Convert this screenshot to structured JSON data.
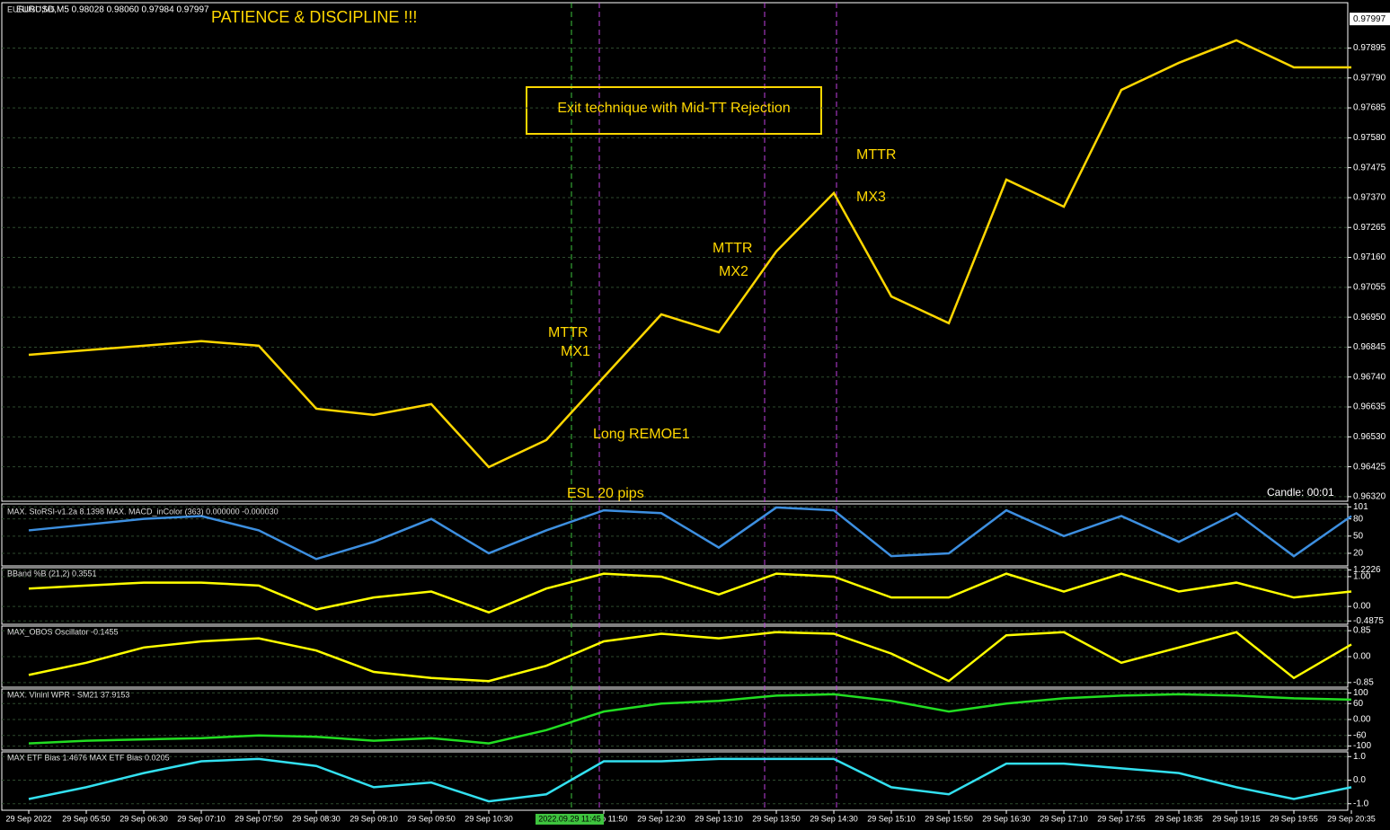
{
  "header": "EURUSD,M5  0.98028 0.98060 0.97984 0.97997",
  "title": "PATIENCE & DISCIPLINE !!!",
  "annotations": [
    "Exit technique with Mid-TT Rejection",
    "MTTR",
    "MX3",
    "MTTR",
    "MX2",
    "MTTR",
    "MX1",
    "Long REMOE1",
    "ESL 20 pips",
    "Candle:  00:01"
  ],
  "cursor_label": "2022.09.29 11:45",
  "chart_data": [
    {
      "type": "line",
      "title": "EURUSD,M5",
      "color": "#ffd700",
      "categories": [
        "29 Sep 2022",
        "29 Sep 05:50",
        "29 Sep 06:30",
        "29 Sep 07:10",
        "29 Sep 07:50",
        "29 Sep 08:30",
        "29 Sep 09:10",
        "29 Sep 09:50",
        "29 Sep 10:30",
        null,
        "29 Sep 11:50",
        "29 Sep 12:30",
        "29 Sep 13:10",
        "29 Sep 13:50",
        "29 Sep 14:30",
        "29 Sep 15:10",
        "29 Sep 15:50",
        "29 Sep 16:30",
        "29 Sep 17:10",
        "29 Sep 17:55",
        "29 Sep 18:35",
        "29 Sep 19:15",
        "29 Sep 19:55",
        "29 Sep 20:35"
      ],
      "values": [
        0.96818,
        0.96834,
        0.9685,
        0.96866,
        0.9685,
        0.96629,
        0.96607,
        0.96645,
        0.96424,
        0.96519,
        0.9674,
        0.9696,
        0.96897,
        0.97181,
        0.97386,
        0.97023,
        0.96929,
        0.97433,
        0.97338,
        0.97748,
        0.97843,
        0.97922,
        0.97827,
        0.97827
      ],
      "last_price": 0.97997,
      "ylim": [
        0.96304,
        0.98051
      ],
      "yticks": [
        0.97895,
        {
          "value": 0.9779,
          "label": "0.97790"
        },
        0.97685,
        {
          "value": 0.9758,
          "label": "0.97580"
        },
        0.97475,
        {
          "value": 0.9737,
          "label": "0.97370"
        },
        0.97265,
        {
          "value": 0.9716,
          "label": "0.97160"
        },
        0.97055,
        {
          "value": 0.9695,
          "label": "0.96950"
        },
        0.96845,
        {
          "value": 0.9674,
          "label": "0.96740"
        },
        0.96635,
        {
          "value": 0.9653,
          "label": "0.96530"
        },
        0.96425,
        {
          "value": 0.9632,
          "label": "0.96320"
        }
      ]
    },
    {
      "type": "line",
      "title": "MAX. StoRSI-v1.2a 8.1398  MAX. MACD_inColor (363) 0.000000 -0.000030",
      "color": "#3d8fe0",
      "values": [
        60,
        70,
        80,
        85,
        60,
        10,
        40,
        80,
        20,
        60,
        95,
        90,
        30,
        100,
        95,
        15,
        20,
        95,
        50,
        85,
        40,
        90,
        15,
        85
      ],
      "ylim": [
        -2,
        103
      ],
      "yticks": [
        101,
        80,
        50,
        20
      ]
    },
    {
      "type": "line",
      "title": "BBand %B (21,2) 0.3551",
      "color": "#ffff00",
      "values": [
        0.6,
        0.7,
        0.8,
        0.8,
        0.7,
        -0.1,
        0.3,
        0.5,
        -0.2,
        0.6,
        1.1,
        1.0,
        0.4,
        1.1,
        1.0,
        0.3,
        0.3,
        1.1,
        0.5,
        1.1,
        0.5,
        0.8,
        0.3,
        0.5
      ],
      "ylim": [
        -0.6,
        1.3
      ],
      "yticks": [
        1.2226,
        {
          "value": 1,
          "label": "1.00"
        },
        {
          "value": 0,
          "label": "0.00"
        },
        -0.4875
      ]
    },
    {
      "type": "line",
      "title": "MAX_OBOS Oscillator -0.1455",
      "color": "#ffff00",
      "values": [
        -0.6,
        -0.2,
        0.3,
        0.5,
        0.6,
        0.2,
        -0.5,
        -0.7,
        -0.8,
        -0.3,
        0.5,
        0.75,
        0.6,
        0.8,
        0.75,
        0.1,
        -0.8,
        0.7,
        0.8,
        -0.2,
        0.3,
        0.8,
        -0.7,
        0.4
      ],
      "ylim": [
        -1,
        1
      ],
      "yticks": [
        0.85,
        {
          "value": 0,
          "label": "0.00"
        },
        -0.85
      ]
    },
    {
      "type": "line",
      "title": "MAX. Vininl WPR - SM21 37.9153",
      "color": "#22dd22",
      "values": [
        -90,
        -80,
        -75,
        -70,
        -60,
        -65,
        -80,
        -70,
        -90,
        -40,
        30,
        60,
        70,
        90,
        95,
        70,
        30,
        60,
        80,
        90,
        95,
        90,
        80,
        75
      ],
      "ylim": [
        -115,
        115
      ],
      "yticks": [
        100,
        60,
        {
          "value": 0,
          "label": "0.00"
        },
        -60,
        -100
      ]
    },
    {
      "type": "line",
      "title": "MAX ETF Bias 1.4676  MAX ETF Bias 0.0205",
      "color": "#33e0f0",
      "values": [
        -0.8,
        -0.3,
        0.3,
        0.8,
        0.9,
        0.6,
        -0.3,
        -0.1,
        -0.9,
        -0.6,
        0.8,
        0.8,
        0.9,
        0.9,
        0.9,
        -0.3,
        -0.6,
        0.7,
        0.7,
        0.5,
        0.3,
        -0.3,
        -0.8,
        -0.3
      ],
      "ylim": [
        -1.2,
        1.2
      ],
      "yticks": [
        {
          "value": 1,
          "label": "1.0"
        },
        {
          "value": 0,
          "label": "0.0"
        },
        {
          "value": -1,
          "label": "-1.0"
        }
      ]
    }
  ]
}
